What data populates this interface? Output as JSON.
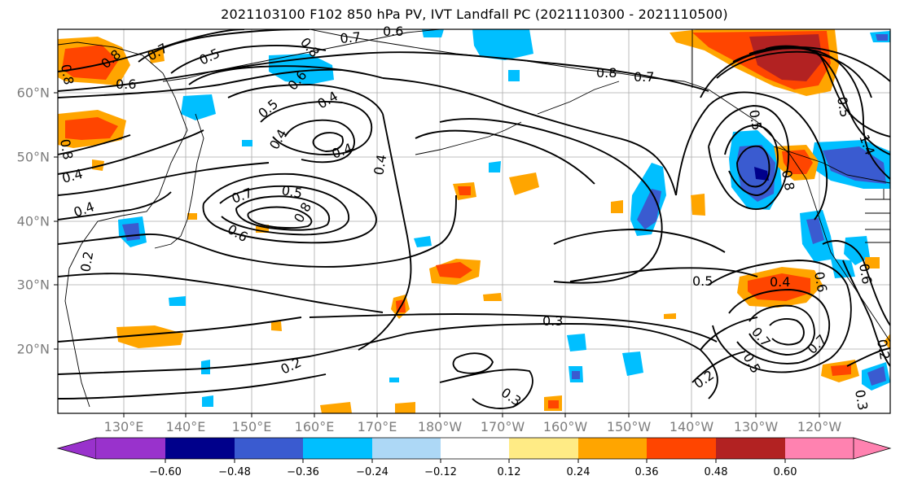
{
  "title": "2021103100 F102 850 hPa PV, IVT Landfall PC (2021110300 - 2021110500)",
  "latitude_labels": [
    "60°N",
    "50°N",
    "40°N",
    "30°N",
    "20°N"
  ],
  "longitude_labels": [
    "130°E",
    "140°E",
    "150°E",
    "160°E",
    "170°E",
    "180°W",
    "170°W",
    "160°W",
    "150°W",
    "140°W",
    "130°W",
    "120°W"
  ],
  "contour_labels": [
    "0.7",
    "0.6",
    "0.8",
    "0.5",
    "0.4",
    "0.6",
    "0.7",
    "0.8",
    "0.5",
    "0.4",
    "0.5",
    "0.4",
    "0.8",
    "0.7",
    "0.6",
    "0.5",
    "0.4",
    "0.3",
    "0.2",
    "0.2",
    "0.3",
    "0.5",
    "0.4",
    "0.7",
    "0.5",
    "0.7",
    "0.2",
    "0.3",
    "0.8",
    "0.7",
    "0.5",
    "0.6",
    "0.4",
    "0.8",
    "0.6",
    "0.4",
    "0.6",
    "0.2",
    "0.8",
    "0.8",
    "1.4"
  ],
  "colorbar": {
    "ticks": [
      "−0.60",
      "−0.48",
      "−0.36",
      "−0.24",
      "−0.12",
      "0.12",
      "0.24",
      "0.36",
      "0.48",
      "0.60"
    ],
    "colors": [
      "#9932cc",
      "#00008b",
      "#3a5bd0",
      "#00bfff",
      "#add8f6",
      "#ffffff",
      "#ffeb85",
      "#ffa500",
      "#ff4500",
      "#b22222",
      "#ff82b0"
    ]
  },
  "map_colors": {
    "contour": "#000000",
    "coastline": "#000000",
    "grid": "#aaaaaa",
    "frame": "#000000"
  }
}
